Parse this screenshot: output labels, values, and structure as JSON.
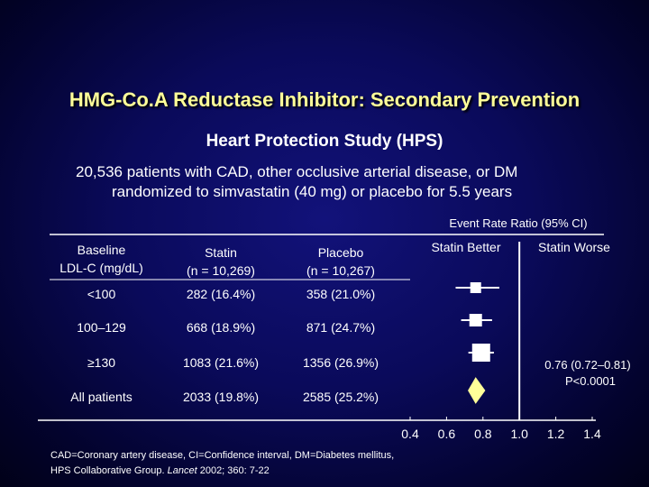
{
  "title": "HMG-Co.A Reductase Inhibitor: Secondary Prevention",
  "subtitle": "Heart Protection Study (HPS)",
  "description": {
    "line1": "20,536 patients with CAD, other occlusive arterial disease, or DM",
    "line2": "randomized to simvastatin (40 mg) or placebo for 5.5 years"
  },
  "table": {
    "headers": {
      "baseline": [
        "Baseline",
        "LDL-C (mg/dL)"
      ],
      "statin": [
        "Statin",
        "(n = 10,269)"
      ],
      "placebo": [
        "Placebo",
        "(n = 10,267)"
      ]
    },
    "rows": [
      {
        "label": "<100",
        "statin": "282 (16.4%)",
        "placebo": "358 (21.0%)"
      },
      {
        "label": "100–129",
        "statin": "668 (18.9%)",
        "placebo": "871 (24.7%)"
      },
      {
        "label": "≥130",
        "statin": "1083 (21.6%)",
        "placebo": "1356 (26.9%)"
      },
      {
        "label": "All patients",
        "statin": "2033 (19.8%)",
        "placebo": "2585 (25.2%)"
      }
    ]
  },
  "chart_data": {
    "type": "forest",
    "title": "Event Rate Ratio (95% CI)",
    "left_label": "Statin Better",
    "right_label": "Statin Worse",
    "xlim": [
      0.4,
      1.4
    ],
    "ticks": [
      "0.4",
      "0.6",
      "0.8",
      "1.0",
      "1.2",
      "1.4"
    ],
    "reference_line": 1.0,
    "points": [
      {
        "category": "<100",
        "ratio": 0.76,
        "ci": [
          0.65,
          0.89
        ],
        "marker": "square"
      },
      {
        "category": "100–129",
        "ratio": 0.76,
        "ci": [
          0.68,
          0.85
        ],
        "marker": "square"
      },
      {
        "category": "≥130",
        "ratio": 0.79,
        "ci": [
          0.72,
          0.86
        ],
        "marker": "square"
      },
      {
        "category": "All patients",
        "ratio": 0.76,
        "ci": [
          0.72,
          0.81
        ],
        "marker": "diamond"
      }
    ],
    "summary_annotation": {
      "line1": "0.76 (0.72–0.81)",
      "line2": "P<0.0001"
    }
  },
  "footnote": {
    "line1": "CAD=Coronary artery disease, CI=Confidence interval, DM=Diabetes mellitus,",
    "line2_prefix": "HPS Collaborative Group. ",
    "line2_journal": "Lancet",
    "line2_suffix": " 2002; 360: 7-22"
  }
}
